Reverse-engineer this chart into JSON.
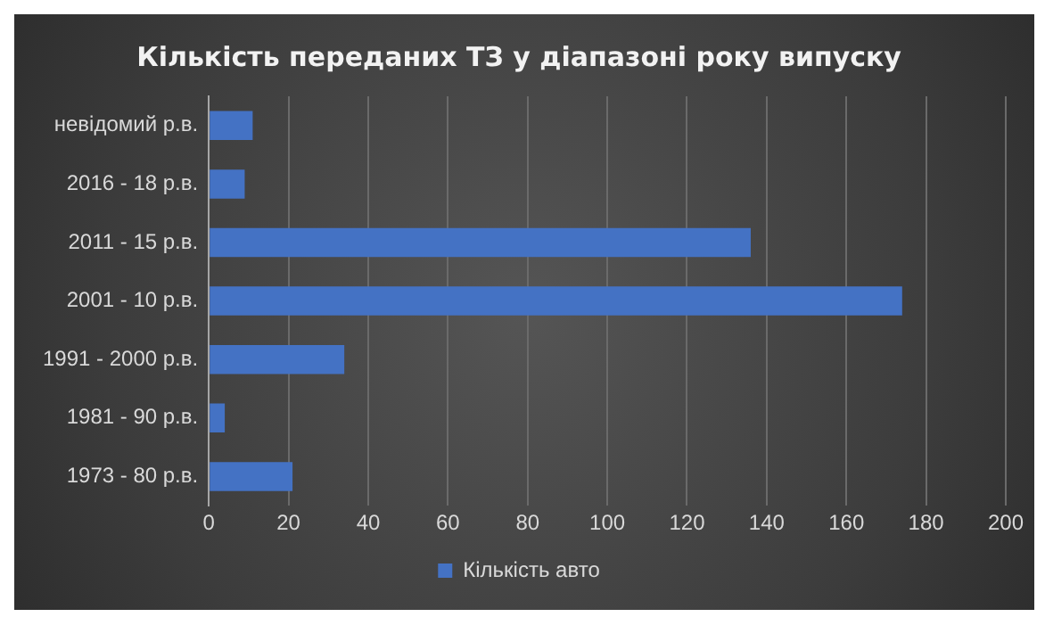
{
  "chart_data": {
    "type": "bar",
    "orientation": "horizontal",
    "title": "Кількість переданих ТЗ у діапазоні року випуску",
    "categories": [
      "невідомий р.в.",
      "2016 - 18 р.в.",
      "2011 - 15 р.в.",
      "2001 - 10 р.в.",
      "1991 - 2000 р.в.",
      "1981 - 90 р.в.",
      "1973 - 80 р.в."
    ],
    "series": [
      {
        "name": "Кількість авто",
        "color": "#4472c4",
        "values": [
          11,
          9,
          136,
          174,
          34,
          4,
          21
        ]
      }
    ],
    "xlim": [
      0,
      200
    ],
    "xticks": [
      0,
      20,
      40,
      60,
      80,
      100,
      120,
      140,
      160,
      180,
      200
    ],
    "grid": "x",
    "legend": "bottom"
  }
}
